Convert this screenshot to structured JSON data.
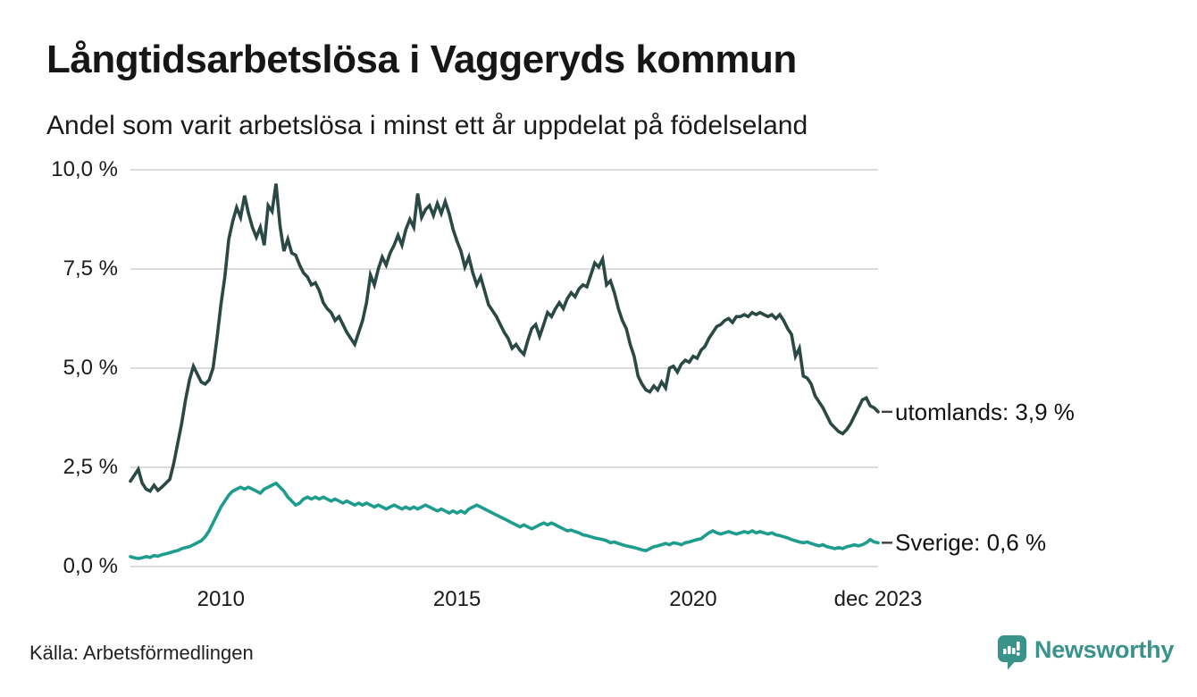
{
  "header": {
    "title": "Långtidsarbetslösa i Vaggeryds kommun",
    "subtitle": "Andel som varit arbetslösa i minst ett år uppdelat på födelseland"
  },
  "chart_data": {
    "type": "line",
    "unit": "%",
    "frequency": "monthly",
    "x_start": "2008-02",
    "x_end": "2023-12",
    "ylim": [
      0,
      10
    ],
    "grid": true,
    "legend_position": "end-of-line-labels",
    "yticks": [
      {
        "label": "0,0 %",
        "value": 0
      },
      {
        "label": "2,5 %",
        "value": 2.5
      },
      {
        "label": "5,0 %",
        "value": 5
      },
      {
        "label": "7,5 %",
        "value": 7.5
      },
      {
        "label": "10,0 %",
        "value": 10
      }
    ],
    "xticks": [
      {
        "label": "2010",
        "month_index": 23
      },
      {
        "label": "2015",
        "month_index": 83
      },
      {
        "label": "2020",
        "month_index": 143
      },
      {
        "label": "dec 2023",
        "month_index": 190
      }
    ],
    "series": [
      {
        "name": "utomlands",
        "end_label": "utomlands: 3,9 %",
        "end_value": 3.9,
        "color": "#2b4944",
        "values": [
          2.15,
          2.3,
          2.45,
          2.1,
          1.95,
          1.9,
          2.05,
          1.92,
          2.0,
          2.1,
          2.2,
          2.6,
          3.1,
          3.6,
          4.2,
          4.7,
          5.05,
          4.85,
          4.65,
          4.6,
          4.7,
          5.0,
          5.75,
          6.6,
          7.3,
          8.25,
          8.7,
          9.05,
          8.8,
          9.35,
          8.9,
          8.55,
          8.3,
          8.55,
          8.1,
          9.1,
          8.95,
          9.65,
          8.6,
          7.95,
          8.25,
          7.9,
          7.85,
          7.6,
          7.4,
          7.3,
          7.1,
          7.15,
          6.95,
          6.65,
          6.5,
          6.4,
          6.2,
          6.3,
          6.1,
          5.9,
          5.75,
          5.6,
          5.9,
          6.2,
          6.65,
          7.35,
          7.1,
          7.5,
          7.8,
          7.6,
          7.9,
          8.1,
          8.35,
          8.1,
          8.5,
          8.75,
          8.55,
          9.4,
          8.8,
          9.0,
          9.1,
          8.85,
          9.15,
          8.9,
          9.2,
          8.9,
          8.5,
          8.2,
          7.95,
          7.55,
          7.8,
          7.4,
          7.1,
          7.3,
          6.95,
          6.6,
          6.45,
          6.3,
          6.1,
          5.9,
          5.75,
          5.5,
          5.6,
          5.45,
          5.35,
          5.7,
          6.0,
          6.1,
          5.8,
          6.1,
          6.4,
          6.3,
          6.5,
          6.65,
          6.5,
          6.75,
          6.9,
          6.8,
          7.0,
          7.1,
          7.05,
          7.35,
          7.65,
          7.55,
          7.75,
          7.1,
          7.2,
          6.9,
          6.5,
          6.2,
          6.0,
          5.6,
          5.3,
          4.8,
          4.6,
          4.45,
          4.4,
          4.55,
          4.45,
          4.65,
          4.5,
          5.0,
          5.05,
          4.9,
          5.1,
          5.2,
          5.15,
          5.3,
          5.25,
          5.45,
          5.55,
          5.75,
          5.9,
          6.05,
          6.1,
          6.2,
          6.25,
          6.15,
          6.3,
          6.3,
          6.35,
          6.3,
          6.4,
          6.35,
          6.4,
          6.35,
          6.3,
          6.35,
          6.25,
          6.35,
          6.2,
          6.0,
          5.85,
          5.3,
          5.5,
          4.8,
          4.75,
          4.6,
          4.3,
          4.15,
          4.0,
          3.8,
          3.6,
          3.5,
          3.4,
          3.35,
          3.45,
          3.6,
          3.8,
          4.0,
          4.2,
          4.25,
          4.05,
          4.0,
          3.9
        ]
      },
      {
        "name": "Sverige",
        "end_label": "Sverige: 0,6 %",
        "end_value": 0.6,
        "color": "#1e9c8d",
        "values": [
          0.25,
          0.22,
          0.2,
          0.22,
          0.25,
          0.23,
          0.28,
          0.26,
          0.3,
          0.32,
          0.35,
          0.38,
          0.4,
          0.45,
          0.48,
          0.5,
          0.55,
          0.6,
          0.65,
          0.75,
          0.9,
          1.1,
          1.3,
          1.5,
          1.65,
          1.8,
          1.9,
          1.95,
          2.0,
          1.95,
          2.0,
          1.95,
          1.9,
          1.85,
          1.95,
          2.0,
          2.05,
          2.1,
          2.0,
          1.9,
          1.75,
          1.65,
          1.55,
          1.6,
          1.7,
          1.75,
          1.7,
          1.75,
          1.7,
          1.75,
          1.7,
          1.65,
          1.7,
          1.65,
          1.6,
          1.65,
          1.6,
          1.55,
          1.6,
          1.55,
          1.6,
          1.55,
          1.5,
          1.55,
          1.5,
          1.45,
          1.5,
          1.55,
          1.5,
          1.45,
          1.5,
          1.45,
          1.5,
          1.45,
          1.5,
          1.55,
          1.5,
          1.45,
          1.4,
          1.45,
          1.4,
          1.35,
          1.4,
          1.35,
          1.4,
          1.35,
          1.45,
          1.5,
          1.55,
          1.5,
          1.45,
          1.4,
          1.35,
          1.3,
          1.25,
          1.2,
          1.15,
          1.1,
          1.05,
          1.0,
          1.05,
          1.0,
          0.95,
          1.0,
          1.05,
          1.1,
          1.05,
          1.1,
          1.05,
          1.0,
          0.95,
          0.9,
          0.92,
          0.88,
          0.85,
          0.8,
          0.78,
          0.75,
          0.72,
          0.7,
          0.68,
          0.65,
          0.6,
          0.62,
          0.58,
          0.55,
          0.52,
          0.5,
          0.48,
          0.45,
          0.42,
          0.4,
          0.45,
          0.5,
          0.52,
          0.55,
          0.58,
          0.55,
          0.6,
          0.58,
          0.55,
          0.6,
          0.62,
          0.65,
          0.68,
          0.7,
          0.78,
          0.85,
          0.9,
          0.85,
          0.82,
          0.85,
          0.88,
          0.85,
          0.82,
          0.85,
          0.88,
          0.85,
          0.9,
          0.85,
          0.88,
          0.85,
          0.82,
          0.85,
          0.8,
          0.78,
          0.75,
          0.72,
          0.68,
          0.65,
          0.62,
          0.6,
          0.62,
          0.58,
          0.55,
          0.52,
          0.55,
          0.5,
          0.48,
          0.45,
          0.48,
          0.45,
          0.5,
          0.52,
          0.55,
          0.52,
          0.55,
          0.6,
          0.68,
          0.62,
          0.6
        ]
      }
    ]
  },
  "footer": {
    "source": "Källa: Arbetsförmedlingen",
    "brand": "Newsworthy"
  },
  "colors": {
    "grid": "#dcdcdc",
    "annotation_dash": "#3d3d3d",
    "brand_teal": "#3a938b"
  }
}
